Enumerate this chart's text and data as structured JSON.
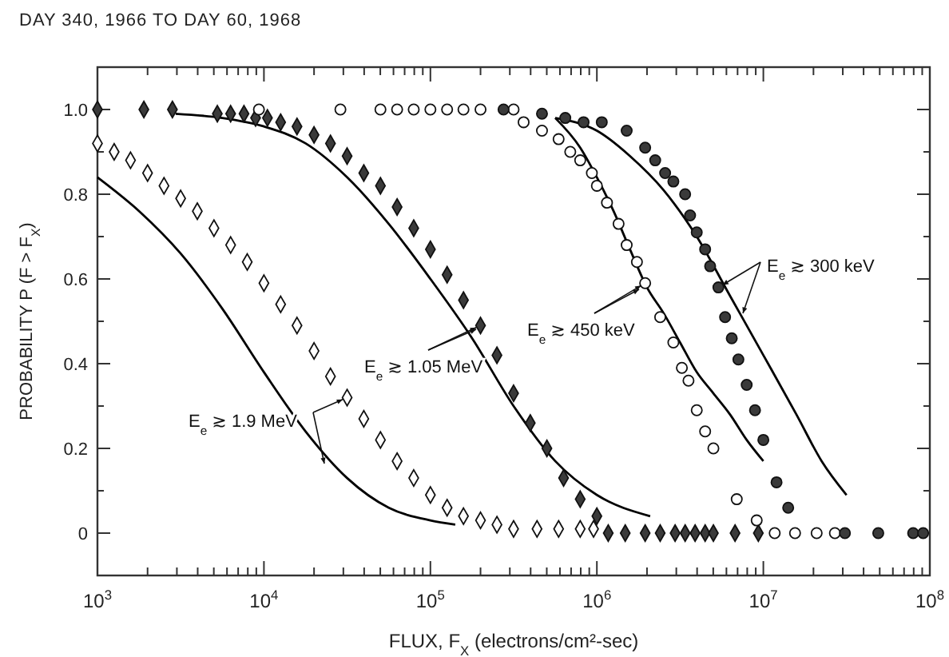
{
  "chart_data": {
    "type": "scatter",
    "title": "DAY 340, 1966 TO DAY 60, 1968",
    "xlabel": "FLUX, F$_{X}$ (electrons/cm²-sec)",
    "ylabel": "PROBABILITY P (F > F$_{X}$)",
    "log": "x",
    "grid": false,
    "xlim": [
      1000,
      100000000
    ],
    "ylim": [
      -0.1,
      1.1
    ],
    "xticks": [
      {
        "value": 1000,
        "label": "10$^{3}$"
      },
      {
        "value": 2000,
        "label": null
      },
      {
        "value": 3000,
        "label": null
      },
      {
        "value": 4000,
        "label": null
      },
      {
        "value": 5000,
        "label": null
      },
      {
        "value": 6000,
        "label": null
      },
      {
        "value": 7000,
        "label": null
      },
      {
        "value": 8000,
        "label": null
      },
      {
        "value": 9000,
        "label": null
      },
      {
        "value": 10000,
        "label": "10$^{4}$"
      },
      {
        "value": 20000,
        "label": null
      },
      {
        "value": 30000,
        "label": null
      },
      {
        "value": 40000,
        "label": null
      },
      {
        "value": 50000,
        "label": null
      },
      {
        "value": 60000,
        "label": null
      },
      {
        "value": 70000,
        "label": null
      },
      {
        "value": 80000,
        "label": null
      },
      {
        "value": 90000,
        "label": null
      },
      {
        "value": 100000,
        "label": "10$^{5}$"
      },
      {
        "value": 200000,
        "label": null
      },
      {
        "value": 300000,
        "label": null
      },
      {
        "value": 400000,
        "label": null
      },
      {
        "value": 500000,
        "label": null
      },
      {
        "value": 600000,
        "label": null
      },
      {
        "value": 700000,
        "label": null
      },
      {
        "value": 800000,
        "label": null
      },
      {
        "value": 900000,
        "label": null
      },
      {
        "value": 1000000,
        "label": "10$^{6}$"
      },
      {
        "value": 2000000,
        "label": null
      },
      {
        "value": 3000000,
        "label": null
      },
      {
        "value": 4000000,
        "label": null
      },
      {
        "value": 5000000,
        "label": null
      },
      {
        "value": 6000000,
        "label": null
      },
      {
        "value": 7000000,
        "label": null
      },
      {
        "value": 8000000,
        "label": null
      },
      {
        "value": 9000000,
        "label": null
      },
      {
        "value": 10000000,
        "label": "10$^{7}$"
      },
      {
        "value": 20000000,
        "label": null
      },
      {
        "value": 30000000,
        "label": null
      },
      {
        "value": 40000000,
        "label": null
      },
      {
        "value": 50000000,
        "label": null
      },
      {
        "value": 60000000,
        "label": null
      },
      {
        "value": 70000000,
        "label": null
      },
      {
        "value": 80000000,
        "label": null
      },
      {
        "value": 90000000,
        "label": null
      },
      {
        "value": 100000000,
        "label": "10$^{8}$"
      }
    ],
    "yticks": [
      0,
      {
        "value": 0.1,
        "label": null
      },
      0.2,
      {
        "value": 0.3,
        "label": null
      },
      0.4,
      {
        "value": 0.5,
        "label": null
      },
      0.6,
      {
        "value": 0.7,
        "label": null
      },
      0.8,
      {
        "value": 0.9,
        "label": null
      },
      {
        "value": 1,
        "label": "1.0"
      }
    ],
    "series": [
      {
        "marker": "diamond",
        "color": "#ffffff",
        "x": [
          1000,
          1260,
          1580,
          2000,
          2510,
          3160,
          3980,
          5010,
          6310,
          7940,
          10000,
          12600,
          15800,
          20000,
          25100,
          31600,
          39800,
          50100,
          63100,
          79400,
          100000,
          126000,
          158000,
          200000,
          251000,
          316000,
          437000,
          589000,
          794000,
          955000
        ],
        "values": [
          0.92,
          0.9,
          0.88,
          0.85,
          0.82,
          0.79,
          0.76,
          0.72,
          0.68,
          0.64,
          0.59,
          0.54,
          0.49,
          0.43,
          0.37,
          0.32,
          0.27,
          0.22,
          0.17,
          0.13,
          0.09,
          0.06,
          0.04,
          0.03,
          0.02,
          0.01,
          0.01,
          0.01,
          0.01,
          0.01
        ]
      },
      {
        "type": "line",
        "color": "#000000",
        "x": [
          1000,
          1780,
          3160,
          5620,
          10000,
          17800,
          31600,
          56200,
          100000,
          141000
        ],
        "values": [
          0.84,
          0.76,
          0.66,
          0.53,
          0.38,
          0.24,
          0.13,
          0.06,
          0.03,
          0.02
        ]
      },
      {
        "marker": "diamond",
        "color": "#3a3a3a",
        "x": [
          1000,
          1900,
          2820,
          5250,
          6310,
          7590,
          8910,
          10500,
          12600,
          15800,
          20000,
          25100,
          31600,
          39800,
          50100,
          63100,
          79400,
          100000,
          126000,
          158000,
          200000,
          251000,
          316000,
          398000,
          501000,
          631000,
          794000,
          1000000,
          1170000,
          1480000,
          1950000,
          2400000,
          2950000,
          3390000,
          3890000,
          4470000,
          5010000,
          6760000,
          9330000
        ],
        "values": [
          1,
          1,
          1,
          0.99,
          0.99,
          0.99,
          0.98,
          0.98,
          0.97,
          0.96,
          0.94,
          0.92,
          0.89,
          0.85,
          0.82,
          0.77,
          0.72,
          0.67,
          0.61,
          0.55,
          0.49,
          0.42,
          0.33,
          0.26,
          0.2,
          0.13,
          0.08,
          0.04,
          0,
          0,
          0,
          0,
          0,
          0,
          0,
          0,
          0,
          0,
          0
        ]
      },
      {
        "type": "line",
        "color": "#000000",
        "x": [
          2950,
          5620,
          10000,
          17800,
          31600,
          56200,
          100000,
          178000,
          316000,
          562000,
          1000000,
          2090000
        ],
        "values": [
          0.99,
          0.98,
          0.96,
          0.92,
          0.84,
          0.73,
          0.6,
          0.46,
          0.3,
          0.17,
          0.09,
          0.04
        ]
      },
      {
        "marker": "circle",
        "color": "#ffffff",
        "x": [
          9330,
          28800,
          50100,
          63100,
          79400,
          100000,
          126000,
          158000,
          200000,
          316000,
          363000,
          468000,
          589000,
          692000,
          794000,
          933000,
          1000000,
          1150000,
          1350000,
          1510000,
          1740000,
          1950000,
          2400000,
          2880000,
          3240000,
          3550000,
          3980000,
          4470000,
          5010000,
          6920000,
          9120000,
          11700000,
          15500000,
          20900000,
          26900000
        ],
        "values": [
          1,
          1,
          1,
          1,
          1,
          1,
          1,
          1,
          1,
          1,
          0.97,
          0.95,
          0.93,
          0.9,
          0.88,
          0.85,
          0.82,
          0.78,
          0.73,
          0.68,
          0.64,
          0.59,
          0.51,
          0.45,
          0.39,
          0.36,
          0.29,
          0.24,
          0.2,
          0.08,
          0.03,
          0,
          0,
          0,
          0
        ]
      },
      {
        "type": "line",
        "color": "#000000",
        "x": [
          562000,
          794000,
          1000000,
          1260000,
          1580000,
          2000000,
          2510000,
          3160000,
          3980000,
          5010000,
          6310000,
          7940000,
          10000000
        ],
        "values": [
          0.98,
          0.91,
          0.84,
          0.76,
          0.67,
          0.58,
          0.52,
          0.45,
          0.38,
          0.33,
          0.28,
          0.22,
          0.17
        ]
      },
      {
        "marker": "circle",
        "color": "#3a3a3a",
        "x": [
          275000,
          468000,
          646000,
          832000,
          1070000,
          1510000,
          1950000,
          2240000,
          2570000,
          2880000,
          3390000,
          3630000,
          3980000,
          4470000,
          4790000,
          5370000,
          5890000,
          6460000,
          7080000,
          7940000,
          8910000,
          10000000,
          12000000,
          14100000,
          30900000,
          49000000,
          79400000,
          91200000
        ],
        "values": [
          1,
          0.99,
          0.98,
          0.97,
          0.97,
          0.95,
          0.91,
          0.88,
          0.85,
          0.83,
          0.8,
          0.75,
          0.71,
          0.67,
          0.63,
          0.58,
          0.51,
          0.46,
          0.41,
          0.35,
          0.29,
          0.22,
          0.12,
          0.06,
          0,
          0,
          0,
          0
        ]
      },
      {
        "type": "line",
        "color": "#000000",
        "x": [
          562000,
          1000000,
          1580000,
          2510000,
          3980000,
          6310000,
          10000000,
          15800000,
          22400000,
          31600000
        ],
        "values": [
          0.98,
          0.95,
          0.89,
          0.81,
          0.7,
          0.56,
          0.42,
          0.28,
          0.17,
          0.09
        ]
      }
    ],
    "annotations": [
      {
        "text": "E$_{e}$ ≳ 1.9 MeV",
        "x": 31600,
        "y": 0.32
      },
      {
        "text": "E$_{e}$ ≳ 1.05 MeV",
        "x": 200000,
        "y": 0.49
      },
      {
        "text": "E$_{e}$ ≳ 450 keV",
        "x": 1950000,
        "y": 0.59
      },
      {
        "text": "E$_{e}$ ≳ 300 keV",
        "x": 5370000,
        "y": 0.58
      }
    ]
  }
}
